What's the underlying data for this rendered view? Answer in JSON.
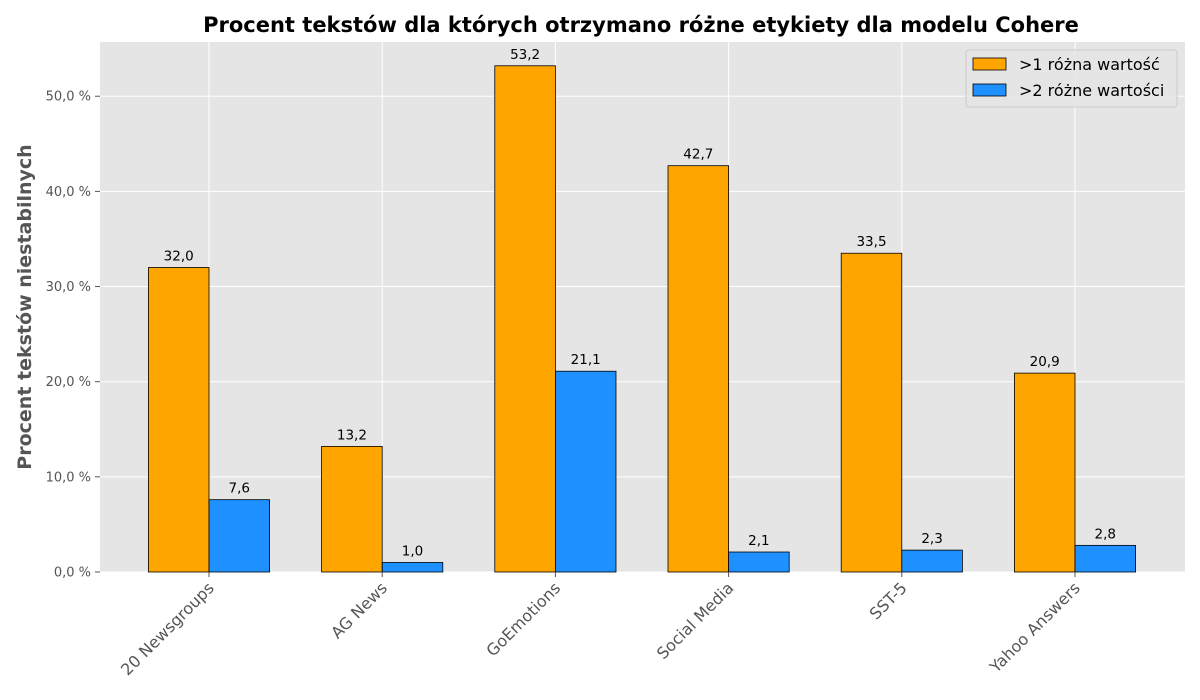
{
  "chart_data": {
    "type": "bar",
    "title": "Procent tekstów dla których otrzymano różne etykiety dla modelu Cohere",
    "xlabel": "",
    "ylabel": "Procent tekstów niestabilnych",
    "categories": [
      "20 Newsgroups",
      "AG News",
      "GoEmotions",
      "Social Media",
      "SST-5",
      "Yahoo Answers"
    ],
    "series": [
      {
        "name": ">1 różna wartość",
        "color": "#FFA500",
        "values": [
          32.0,
          13.2,
          53.2,
          42.7,
          33.5,
          20.9
        ],
        "labels": [
          "32,0",
          "13,2",
          "53,2",
          "42,7",
          "33,5",
          "20,9"
        ]
      },
      {
        "name": ">2 różne wartości",
        "color": "#1E90FF",
        "values": [
          7.6,
          1.0,
          21.1,
          2.1,
          2.3,
          2.8
        ],
        "labels": [
          "7,6",
          "1,0",
          "21,1",
          "2,1",
          "2,3",
          "2,8"
        ]
      }
    ],
    "ylim": [
      0,
      55.7
    ],
    "yticks": [
      0,
      10,
      20,
      30,
      40,
      50
    ],
    "ytick_labels": [
      "0,0 %",
      "10,0 %",
      "20,0 %",
      "30,0 %",
      "40,0 %",
      "50,0 %"
    ],
    "grid": true,
    "legend_position": "top-right",
    "background": "#E5E5E5"
  }
}
